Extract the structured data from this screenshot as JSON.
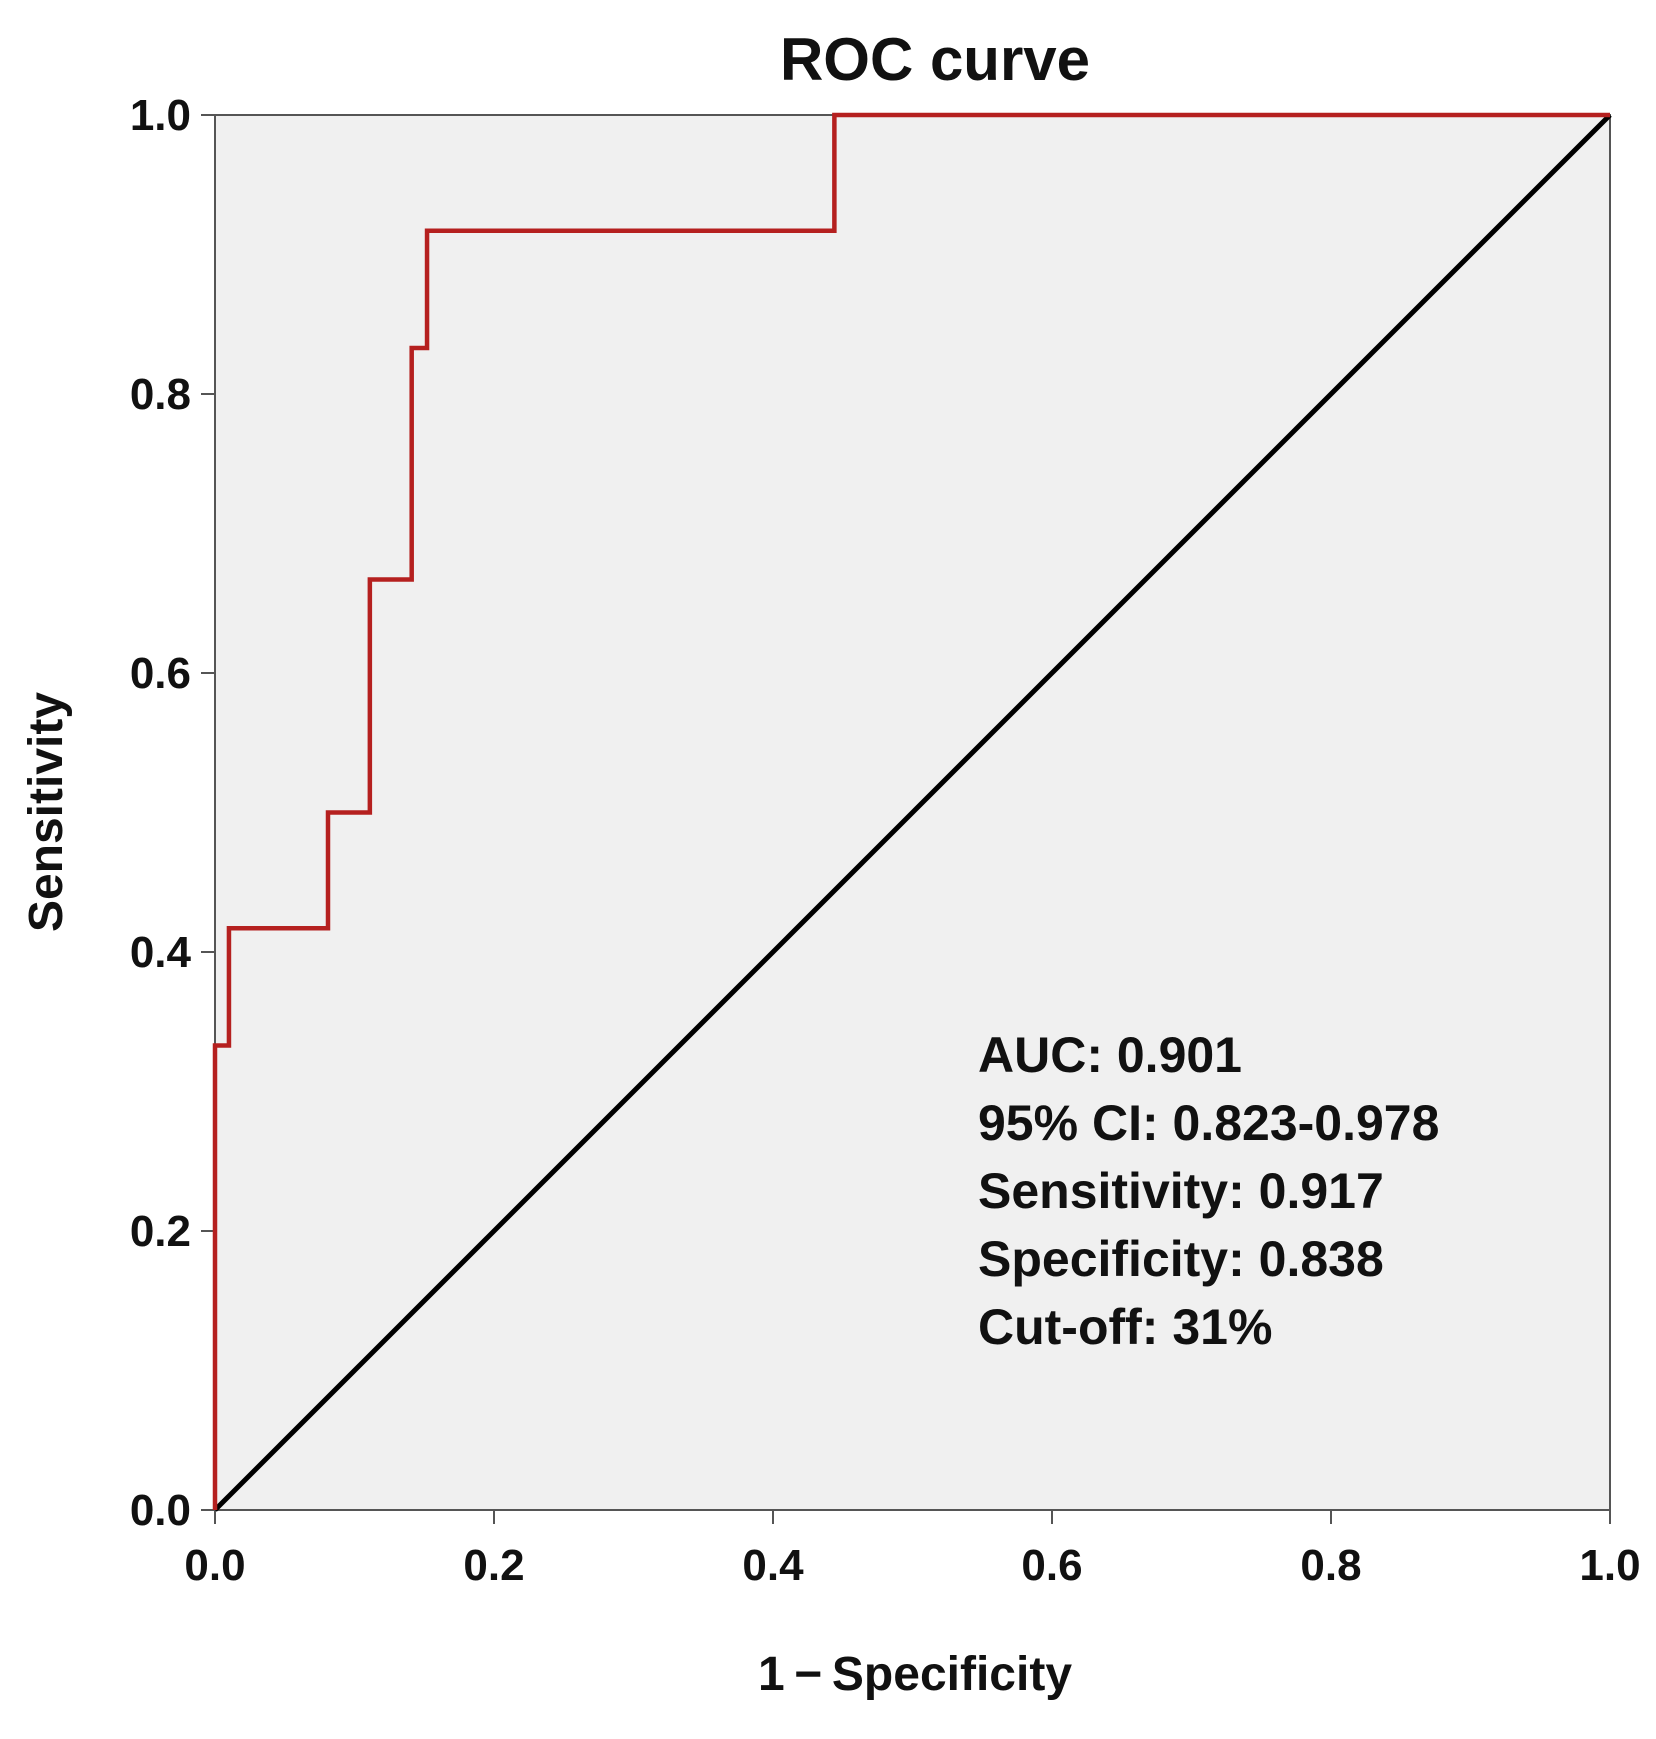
{
  "chart_data": {
    "type": "line",
    "title": "ROC curve",
    "xlabel": "1 − Specificity",
    "ylabel": "Sensitivity",
    "xlim": [
      0,
      1
    ],
    "ylim": [
      0,
      1
    ],
    "x_ticks": [
      "0.0",
      "0.2",
      "0.4",
      "0.6",
      "0.8",
      "1.0"
    ],
    "y_ticks": [
      "0.0",
      "0.2",
      "0.4",
      "0.6",
      "0.8",
      "1.0"
    ],
    "grid": false,
    "series": [
      {
        "name": "ROC",
        "color": "#b5201f",
        "x": [
          0.0,
          0.0,
          0.01,
          0.01,
          0.081,
          0.081,
          0.111,
          0.111,
          0.141,
          0.141,
          0.152,
          0.152,
          0.444,
          0.444,
          1.0
        ],
        "y": [
          0.0,
          0.333,
          0.333,
          0.417,
          0.417,
          0.5,
          0.5,
          0.667,
          0.667,
          0.833,
          0.833,
          0.917,
          0.917,
          1.0,
          1.0
        ]
      },
      {
        "name": "Reference",
        "color": "#000000",
        "x": [
          0.0,
          1.0
        ],
        "y": [
          0.0,
          1.0
        ]
      }
    ],
    "annotations": [
      "AUC: 0.901",
      "95% CI: 0.823-0.978",
      "Sensitivity: 0.917",
      "Specificity: 0.838",
      "Cut-off: 31%"
    ],
    "plot_background": "#f0f0f0"
  }
}
